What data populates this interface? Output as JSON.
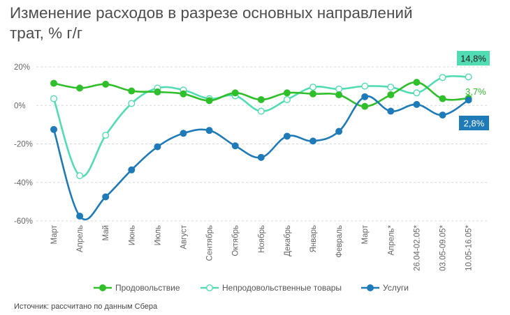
{
  "title_line1": "Изменение расходов в разрезе основных направлений",
  "title_line2": "трат, % г/г",
  "source": "Источник: рассчитано по данным Сбера",
  "colors": {
    "grid": "#d9d9d9",
    "axis_text": "#666666"
  },
  "chart_data": {
    "type": "line",
    "title": "Изменение расходов в разрезе основных направлений трат, % г/г",
    "xlabel": "",
    "ylabel": "",
    "ylim": [
      -60,
      20
    ],
    "yticks": [
      20,
      0,
      -20,
      -40,
      -60
    ],
    "ytick_labels": [
      "20%",
      "0%",
      "-20%",
      "-40%",
      "-60%"
    ],
    "grid": true,
    "legend_position": "bottom",
    "categories": [
      "Март",
      "Апрель",
      "Май",
      "Июнь",
      "Июль",
      "Август",
      "Сентябрь",
      "Октябрь",
      "Ноябрь",
      "Декабрь",
      "Январь",
      "Февраль",
      "Март",
      "Апрель*",
      "26.04-02.05*",
      "03.05-09.05*",
      "10.05-16.05*"
    ],
    "series": [
      {
        "name": "Продовольствие",
        "color": "#2fbf2a",
        "marker_fill": "#2fbf2a",
        "values": [
          11.5,
          9,
          11,
          7.5,
          7,
          6,
          2.5,
          6.5,
          3,
          6.5,
          6,
          5.5,
          -0.5,
          5.5,
          12,
          3.5,
          3.7
        ],
        "end_label": "3,7%",
        "end_label_style": "text"
      },
      {
        "name": "Непродовольственные товары",
        "color": "#52dcb4",
        "marker_fill": "#ffffff",
        "values": [
          3.5,
          -36.5,
          -15.5,
          1,
          9,
          8,
          3.5,
          5,
          -3,
          3,
          9.5,
          8.5,
          10,
          9.5,
          6.5,
          14.5,
          14.8
        ],
        "end_label": "14,8%",
        "end_label_style": "box"
      },
      {
        "name": "Услуги",
        "color": "#1f7ab8",
        "marker_fill": "#1f7ab8",
        "values": [
          -12.5,
          -57.5,
          -47.5,
          -33.5,
          -21.5,
          -14.5,
          -13,
          -21,
          -27,
          -16,
          -18.5,
          -13.5,
          4.5,
          -3,
          0.5,
          -5,
          2.8
        ],
        "end_label": "2,8%",
        "end_label_style": "box"
      }
    ]
  }
}
